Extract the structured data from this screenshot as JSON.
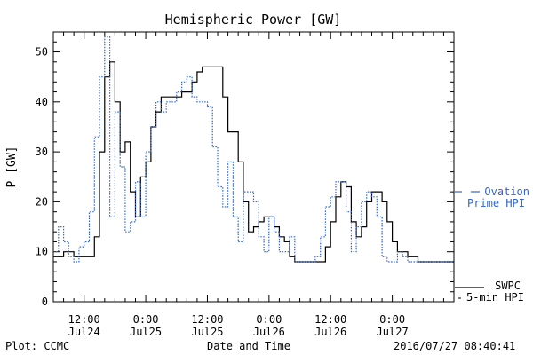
{
  "chart_data": {
    "type": "line",
    "title": "Hemispheric Power [GW]",
    "xlabel": "Date and Time",
    "ylabel": "P [GW]",
    "ylim": [
      0,
      54
    ],
    "yticks": [
      0,
      10,
      20,
      30,
      40,
      50
    ],
    "xlim": [
      "2016-07-24 06:00",
      "2016-07-27 12:00"
    ],
    "xticks": [
      {
        "x": "2016-07-24 12:00",
        "time": "12:00",
        "date": "Jul24"
      },
      {
        "x": "2016-07-25 00:00",
        "time": "0:00",
        "date": "Jul25"
      },
      {
        "x": "2016-07-25 12:00",
        "time": "12:00",
        "date": "Jul25"
      },
      {
        "x": "2016-07-26 00:00",
        "time": "0:00",
        "date": "Jul26"
      },
      {
        "x": "2016-07-26 12:00",
        "time": "12:00",
        "date": "Jul26"
      },
      {
        "x": "2016-07-27 00:00",
        "time": "0:00",
        "date": "Jul27"
      }
    ],
    "legend_placement": "right",
    "series": [
      {
        "legend_lines": [
          "SWPC",
          "5-min HPI"
        ],
        "color": "#000000",
        "style": "solid",
        "x": [
          "2016-07-24 06:00",
          "2016-07-24 07:00",
          "2016-07-24 08:00",
          "2016-07-24 09:00",
          "2016-07-24 10:00",
          "2016-07-24 11:00",
          "2016-07-24 12:00",
          "2016-07-24 13:00",
          "2016-07-24 14:00",
          "2016-07-24 15:00",
          "2016-07-24 16:00",
          "2016-07-24 17:00",
          "2016-07-24 18:00",
          "2016-07-24 19:00",
          "2016-07-24 20:00",
          "2016-07-24 21:00",
          "2016-07-24 22:00",
          "2016-07-24 23:00",
          "2016-07-25 00:00",
          "2016-07-25 01:00",
          "2016-07-25 02:00",
          "2016-07-25 03:00",
          "2016-07-25 04:00",
          "2016-07-25 05:00",
          "2016-07-25 06:00",
          "2016-07-25 07:00",
          "2016-07-25 08:00",
          "2016-07-25 09:00",
          "2016-07-25 10:00",
          "2016-07-25 11:00",
          "2016-07-25 12:00",
          "2016-07-25 13:00",
          "2016-07-25 14:00",
          "2016-07-25 15:00",
          "2016-07-25 16:00",
          "2016-07-25 17:00",
          "2016-07-25 18:00",
          "2016-07-25 19:00",
          "2016-07-25 20:00",
          "2016-07-25 21:00",
          "2016-07-25 22:00",
          "2016-07-25 23:00",
          "2016-07-26 00:00",
          "2016-07-26 01:00",
          "2016-07-26 02:00",
          "2016-07-26 03:00",
          "2016-07-26 04:00",
          "2016-07-26 05:00",
          "2016-07-26 06:00",
          "2016-07-26 07:00",
          "2016-07-26 08:00",
          "2016-07-26 09:00",
          "2016-07-26 10:00",
          "2016-07-26 11:00",
          "2016-07-26 12:00",
          "2016-07-26 13:00",
          "2016-07-26 14:00",
          "2016-07-26 15:00",
          "2016-07-26 16:00",
          "2016-07-26 17:00",
          "2016-07-26 18:00",
          "2016-07-26 19:00",
          "2016-07-26 20:00",
          "2016-07-26 21:00",
          "2016-07-26 22:00",
          "2016-07-26 23:00",
          "2016-07-27 00:00",
          "2016-07-27 01:00",
          "2016-07-27 02:00",
          "2016-07-27 03:00",
          "2016-07-27 04:00",
          "2016-07-27 05:00",
          "2016-07-27 06:00",
          "2016-07-27 07:00",
          "2016-07-27 08:00"
        ],
        "y": [
          9,
          9,
          10,
          10,
          9,
          9,
          9,
          9,
          13,
          30,
          45,
          48,
          40,
          30,
          32,
          22,
          17,
          25,
          28,
          35,
          38,
          41,
          41,
          41,
          41,
          42,
          42,
          44,
          46,
          47,
          47,
          47,
          47,
          41,
          34,
          34,
          28,
          20,
          14,
          15,
          16,
          17,
          17,
          15,
          13,
          12,
          9,
          8,
          8,
          8,
          8,
          8,
          8,
          11,
          16,
          21,
          24,
          23,
          16,
          13,
          15,
          20,
          22,
          22,
          20,
          16,
          12,
          10,
          10,
          9,
          9,
          8,
          8,
          8,
          8
        ]
      },
      {
        "legend_lines": [
          "Ovation",
          "Prime HPI"
        ],
        "color": "#3366cc",
        "style": "dotted",
        "x": [
          "2016-07-24 06:00",
          "2016-07-24 07:00",
          "2016-07-24 08:00",
          "2016-07-24 09:00",
          "2016-07-24 10:00",
          "2016-07-24 11:00",
          "2016-07-24 12:00",
          "2016-07-24 13:00",
          "2016-07-24 14:00",
          "2016-07-24 15:00",
          "2016-07-24 16:00",
          "2016-07-24 17:00",
          "2016-07-24 18:00",
          "2016-07-24 19:00",
          "2016-07-24 20:00",
          "2016-07-24 21:00",
          "2016-07-24 22:00",
          "2016-07-24 23:00",
          "2016-07-25 00:00",
          "2016-07-25 01:00",
          "2016-07-25 02:00",
          "2016-07-25 03:00",
          "2016-07-25 04:00",
          "2016-07-25 05:00",
          "2016-07-25 06:00",
          "2016-07-25 07:00",
          "2016-07-25 08:00",
          "2016-07-25 09:00",
          "2016-07-25 10:00",
          "2016-07-25 11:00",
          "2016-07-25 12:00",
          "2016-07-25 13:00",
          "2016-07-25 14:00",
          "2016-07-25 15:00",
          "2016-07-25 16:00",
          "2016-07-25 17:00",
          "2016-07-25 18:00",
          "2016-07-25 19:00",
          "2016-07-25 20:00",
          "2016-07-25 21:00",
          "2016-07-25 22:00",
          "2016-07-25 23:00",
          "2016-07-26 00:00",
          "2016-07-26 01:00",
          "2016-07-26 02:00",
          "2016-07-26 03:00",
          "2016-07-26 04:00",
          "2016-07-26 05:00",
          "2016-07-26 06:00",
          "2016-07-26 07:00",
          "2016-07-26 08:00",
          "2016-07-26 09:00",
          "2016-07-26 10:00",
          "2016-07-26 11:00",
          "2016-07-26 12:00",
          "2016-07-26 13:00",
          "2016-07-26 14:00",
          "2016-07-26 15:00",
          "2016-07-26 16:00",
          "2016-07-26 17:00",
          "2016-07-26 18:00",
          "2016-07-26 19:00",
          "2016-07-26 20:00",
          "2016-07-26 21:00",
          "2016-07-26 22:00",
          "2016-07-26 23:00",
          "2016-07-27 00:00",
          "2016-07-27 01:00",
          "2016-07-27 02:00",
          "2016-07-27 03:00",
          "2016-07-27 04:00",
          "2016-07-27 05:00",
          "2016-07-27 06:00",
          "2016-07-27 07:00",
          "2016-07-27 08:00"
        ],
        "y": [
          10,
          15,
          12,
          9,
          8,
          11,
          12,
          18,
          33,
          45,
          53,
          17,
          38,
          27,
          14,
          16,
          24,
          17,
          30,
          35,
          40,
          38,
          40,
          40,
          42,
          44,
          45,
          41,
          40,
          40,
          39,
          31,
          23,
          19,
          28,
          17,
          12,
          22,
          22,
          20,
          13,
          10,
          17,
          14,
          10,
          10,
          13,
          8,
          8,
          8,
          8,
          9,
          13,
          19,
          21,
          24,
          24,
          18,
          10,
          15,
          20,
          22,
          21,
          17,
          9,
          8,
          8,
          10,
          9,
          8,
          8,
          8,
          8,
          8,
          8
        ]
      }
    ]
  },
  "footer": {
    "plot_credit": "Plot: CCMC",
    "timestamp": "2016/07/27 08:40:41"
  }
}
